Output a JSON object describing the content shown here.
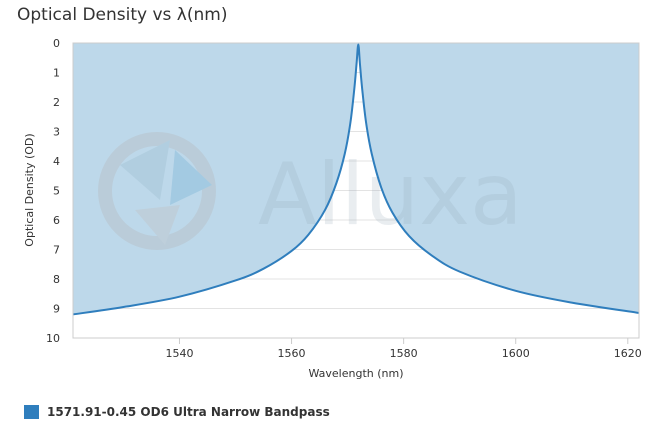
{
  "title": "Optical Density vs λ(nm)",
  "watermark": "Alluxa",
  "colors": {
    "fill": "#bdd8ea",
    "line": "#2f7ebd",
    "grid": "#e3e3e3",
    "axis": "#cccccc"
  },
  "legend": {
    "label": "1571.91-0.45 OD6 Ultra Narrow Bandpass"
  },
  "chart_data": {
    "type": "line",
    "title": "Optical Density vs λ(nm)",
    "xlabel": "Wavelength (nm)",
    "ylabel": "Optical Density (OD)",
    "xlim": [
      1521,
      1622
    ],
    "ylim": [
      0,
      10
    ],
    "y_reversed": true,
    "x_ticks": [
      1540,
      1560,
      1580,
      1600,
      1620
    ],
    "y_ticks": [
      0,
      1,
      2,
      3,
      4,
      5,
      6,
      7,
      8,
      9,
      10
    ],
    "grid": "horizontal",
    "area_fill": "above-curve",
    "legend_position": "bottom-left",
    "series": [
      {
        "name": "1571.91-0.45 OD6 Ultra Narrow Bandpass",
        "x": [
          1521,
          1530,
          1540,
          1550,
          1555,
          1560,
          1563,
          1566,
          1568,
          1569.5,
          1570.5,
          1571.2,
          1571.6,
          1571.91,
          1572.2,
          1572.6,
          1573.3,
          1574.3,
          1576,
          1578,
          1581,
          1585,
          1590,
          1600,
          1610,
          1622
        ],
        "y": [
          9.2,
          8.95,
          8.6,
          8.05,
          7.65,
          7.05,
          6.5,
          5.65,
          4.75,
          3.75,
          2.7,
          1.55,
          0.7,
          0.05,
          0.7,
          1.55,
          2.7,
          3.75,
          4.9,
          5.75,
          6.55,
          7.2,
          7.75,
          8.4,
          8.8,
          9.15
        ]
      }
    ]
  }
}
